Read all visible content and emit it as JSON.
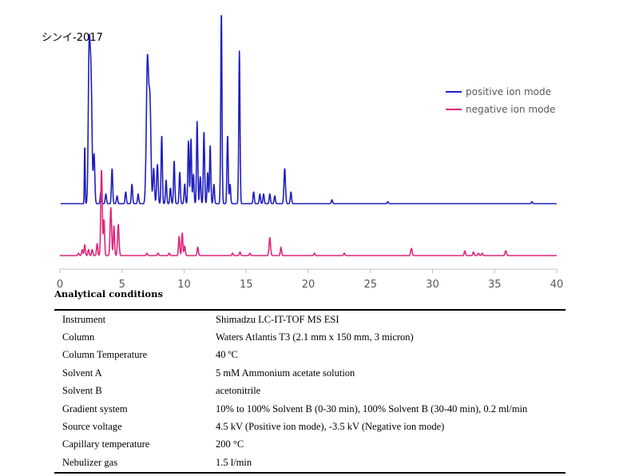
{
  "chart_data": {
    "type": "line",
    "sample_label": "シンイ-2017",
    "x_ticks": [
      "0",
      "5",
      "10",
      "15",
      "20",
      "25",
      "30",
      "35",
      "40"
    ],
    "xlim": [
      0,
      40
    ],
    "grid": false,
    "legend_position": "top-right",
    "series": [
      {
        "name": "positive ion mode",
        "color": "#1f1fbf",
        "baseline": 0,
        "peaks": [
          [
            2.0,
            0.3,
            0.03
          ],
          [
            2.35,
            0.72,
            0.07
          ],
          [
            2.5,
            0.65,
            0.08
          ],
          [
            2.75,
            0.25,
            0.06
          ],
          [
            3.3,
            0.06,
            0.05
          ],
          [
            3.7,
            0.05,
            0.05
          ],
          [
            4.2,
            0.18,
            0.05
          ],
          [
            4.6,
            0.04,
            0.05
          ],
          [
            5.3,
            0.06,
            0.05
          ],
          [
            5.8,
            0.1,
            0.05
          ],
          [
            6.3,
            0.05,
            0.05
          ],
          [
            7.05,
            0.74,
            0.09
          ],
          [
            7.25,
            0.5,
            0.08
          ],
          [
            7.55,
            0.18,
            0.06
          ],
          [
            7.85,
            0.2,
            0.06
          ],
          [
            8.2,
            0.35,
            0.05
          ],
          [
            8.55,
            0.12,
            0.05
          ],
          [
            8.9,
            0.08,
            0.05
          ],
          [
            9.2,
            0.22,
            0.05
          ],
          [
            9.65,
            0.16,
            0.05
          ],
          [
            10.05,
            0.1,
            0.05
          ],
          [
            10.35,
            0.32,
            0.05
          ],
          [
            10.55,
            0.33,
            0.05
          ],
          [
            10.75,
            0.15,
            0.05
          ],
          [
            11.05,
            0.42,
            0.05
          ],
          [
            11.3,
            0.14,
            0.05
          ],
          [
            11.6,
            0.37,
            0.05
          ],
          [
            11.9,
            0.16,
            0.05
          ],
          [
            12.1,
            0.3,
            0.05
          ],
          [
            12.4,
            0.1,
            0.05
          ],
          [
            13.0,
            0.98,
            0.05
          ],
          [
            13.5,
            0.35,
            0.05
          ],
          [
            13.7,
            0.1,
            0.05
          ],
          [
            14.45,
            0.78,
            0.05
          ],
          [
            15.6,
            0.06,
            0.05
          ],
          [
            16.1,
            0.05,
            0.05
          ],
          [
            16.4,
            0.05,
            0.05
          ],
          [
            16.9,
            0.05,
            0.05
          ],
          [
            17.3,
            0.04,
            0.05
          ],
          [
            18.1,
            0.18,
            0.06
          ],
          [
            18.6,
            0.06,
            0.05
          ],
          [
            21.9,
            0.02,
            0.05
          ],
          [
            26.4,
            0.01,
            0.05
          ],
          [
            38.0,
            0.01,
            0.05
          ]
        ]
      },
      {
        "name": "negative ion mode",
        "color": "#e0267a",
        "baseline": 0,
        "peaks": [
          [
            1.5,
            0.02,
            0.05
          ],
          [
            1.8,
            0.05,
            0.05
          ],
          [
            2.0,
            0.09,
            0.05
          ],
          [
            2.3,
            0.05,
            0.05
          ],
          [
            2.6,
            0.05,
            0.05
          ],
          [
            3.0,
            0.1,
            0.05
          ],
          [
            3.35,
            0.72,
            0.06
          ],
          [
            3.55,
            0.3,
            0.05
          ],
          [
            4.1,
            0.4,
            0.06
          ],
          [
            4.35,
            0.25,
            0.05
          ],
          [
            4.7,
            0.26,
            0.06
          ],
          [
            7.0,
            0.02,
            0.05
          ],
          [
            7.9,
            0.02,
            0.05
          ],
          [
            8.8,
            0.02,
            0.05
          ],
          [
            9.6,
            0.16,
            0.05
          ],
          [
            9.85,
            0.19,
            0.05
          ],
          [
            10.05,
            0.08,
            0.05
          ],
          [
            11.1,
            0.07,
            0.05
          ],
          [
            13.9,
            0.02,
            0.05
          ],
          [
            14.5,
            0.03,
            0.05
          ],
          [
            15.3,
            0.02,
            0.05
          ],
          [
            16.9,
            0.15,
            0.06
          ],
          [
            17.8,
            0.07,
            0.05
          ],
          [
            20.5,
            0.02,
            0.05
          ],
          [
            22.9,
            0.02,
            0.05
          ],
          [
            28.3,
            0.06,
            0.06
          ],
          [
            32.6,
            0.04,
            0.05
          ],
          [
            33.3,
            0.03,
            0.05
          ],
          [
            33.7,
            0.02,
            0.05
          ],
          [
            34.0,
            0.02,
            0.05
          ],
          [
            35.9,
            0.04,
            0.06
          ]
        ]
      }
    ]
  },
  "conditions": {
    "title": "Analytical conditions",
    "rows": [
      {
        "key": "Instrument",
        "value": "Shimadzu LC-IT-TOF MS ESI"
      },
      {
        "key": "Column",
        "value": "Waters Atlantis T3 (2.1 mm x 150 mm, 3 micron)"
      },
      {
        "key": "Column Temperature",
        "value": "40 ºC"
      },
      {
        "key": "Solvent A",
        "value": "5 mM Ammonium acetate solution"
      },
      {
        "key": "Solvent B",
        "value": "acetonitrile"
      },
      {
        "key": "Gradient system",
        "value": "10% to 100% Solvent B (0-30 min), 100% Solvent B (30-40 min), 0.2 ml/min"
      },
      {
        "key": "Source voltage",
        "value": "4.5 kV (Positive ion mode), -3.5 kV (Negative ion mode)"
      },
      {
        "key": "Capillary temperature",
        "value": "200 °C"
      },
      {
        "key": "Nebulizer gas",
        "value": "1.5 l/min"
      }
    ]
  }
}
